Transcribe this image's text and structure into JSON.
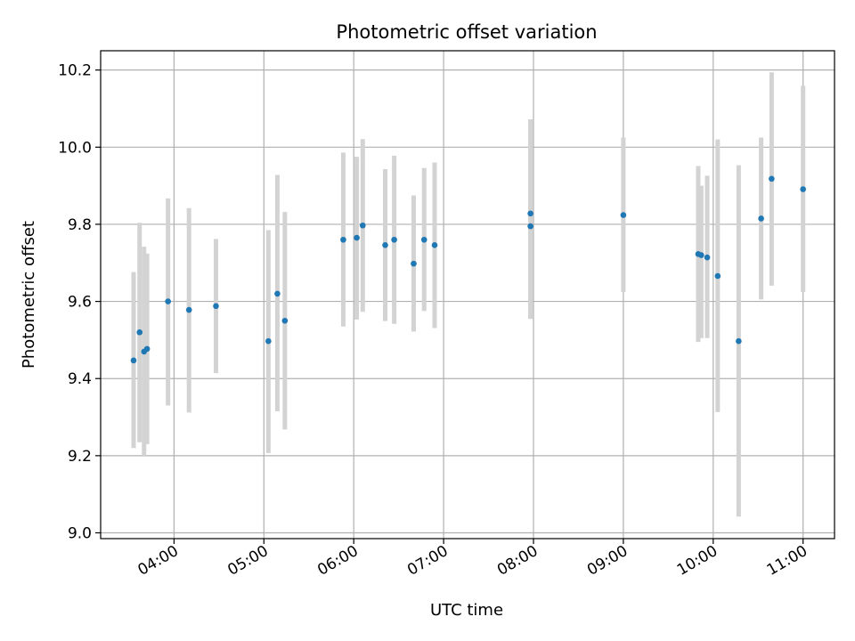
{
  "chart_data": {
    "type": "scatter",
    "title": "Photometric offset variation",
    "xlabel": "UTC time",
    "ylabel": "Photometric offset",
    "x_tick_labels": [
      "04:00",
      "05:00",
      "06:00",
      "07:00",
      "08:00",
      "09:00",
      "10:00",
      "11:00"
    ],
    "y_tick_labels": [
      "9.0",
      "9.2",
      "9.4",
      "9.6",
      "9.8",
      "10.0",
      "10.2"
    ],
    "xlim": [
      "03:11",
      "11:21"
    ],
    "ylim": [
      8.985,
      10.25
    ],
    "grid": true,
    "colors": {
      "point": "#1f77b4",
      "errorbar": "#d3d3d3",
      "grid": "#b0b0b0"
    },
    "points": [
      {
        "x": "03:33",
        "y": 9.447,
        "ylow": 9.22,
        "yhigh": 9.676
      },
      {
        "x": "03:37",
        "y": 9.52,
        "ylow": 9.235,
        "yhigh": 9.804
      },
      {
        "x": "03:40",
        "y": 9.47,
        "ylow": 9.2,
        "yhigh": 9.742
      },
      {
        "x": "03:42",
        "y": 9.477,
        "ylow": 9.23,
        "yhigh": 9.724
      },
      {
        "x": "03:56",
        "y": 9.6,
        "ylow": 9.33,
        "yhigh": 9.867
      },
      {
        "x": "04:10",
        "y": 9.578,
        "ylow": 9.312,
        "yhigh": 9.842
      },
      {
        "x": "04:28",
        "y": 9.588,
        "ylow": 9.414,
        "yhigh": 9.762
      },
      {
        "x": "05:03",
        "y": 9.497,
        "ylow": 9.207,
        "yhigh": 9.785
      },
      {
        "x": "05:09",
        "y": 9.62,
        "ylow": 9.315,
        "yhigh": 9.928
      },
      {
        "x": "05:14",
        "y": 9.55,
        "ylow": 9.268,
        "yhigh": 9.832
      },
      {
        "x": "05:53",
        "y": 9.76,
        "ylow": 9.535,
        "yhigh": 9.986
      },
      {
        "x": "06:02",
        "y": 9.765,
        "ylow": 9.553,
        "yhigh": 9.975
      },
      {
        "x": "06:06",
        "y": 9.797,
        "ylow": 9.573,
        "yhigh": 10.021
      },
      {
        "x": "06:21",
        "y": 9.746,
        "ylow": 9.549,
        "yhigh": 9.943
      },
      {
        "x": "06:27",
        "y": 9.76,
        "ylow": 9.542,
        "yhigh": 9.978
      },
      {
        "x": "06:40",
        "y": 9.698,
        "ylow": 9.522,
        "yhigh": 9.875
      },
      {
        "x": "06:47",
        "y": 9.76,
        "ylow": 9.575,
        "yhigh": 9.946
      },
      {
        "x": "06:54",
        "y": 9.746,
        "ylow": 9.531,
        "yhigh": 9.96
      },
      {
        "x": "07:58",
        "y": 9.828,
        "ylow": 9.555,
        "yhigh": 10.072
      },
      {
        "x": "07:58",
        "y": 9.795,
        "ylow": 9.555,
        "yhigh": 10.072
      },
      {
        "x": "09:00",
        "y": 9.824,
        "ylow": 9.624,
        "yhigh": 10.025
      },
      {
        "x": "09:50",
        "y": 9.723,
        "ylow": 9.495,
        "yhigh": 9.951
      },
      {
        "x": "09:52",
        "y": 9.72,
        "ylow": 9.505,
        "yhigh": 9.9
      },
      {
        "x": "09:56",
        "y": 9.714,
        "ylow": 9.505,
        "yhigh": 9.926
      },
      {
        "x": "10:03",
        "y": 9.666,
        "ylow": 9.313,
        "yhigh": 10.02
      },
      {
        "x": "10:17",
        "y": 9.497,
        "ylow": 9.042,
        "yhigh": 9.953
      },
      {
        "x": "10:32",
        "y": 9.815,
        "ylow": 9.605,
        "yhigh": 10.025
      },
      {
        "x": "10:39",
        "y": 9.918,
        "ylow": 9.641,
        "yhigh": 10.194
      },
      {
        "x": "11:00",
        "y": 9.891,
        "ylow": 9.624,
        "yhigh": 10.159
      }
    ]
  }
}
